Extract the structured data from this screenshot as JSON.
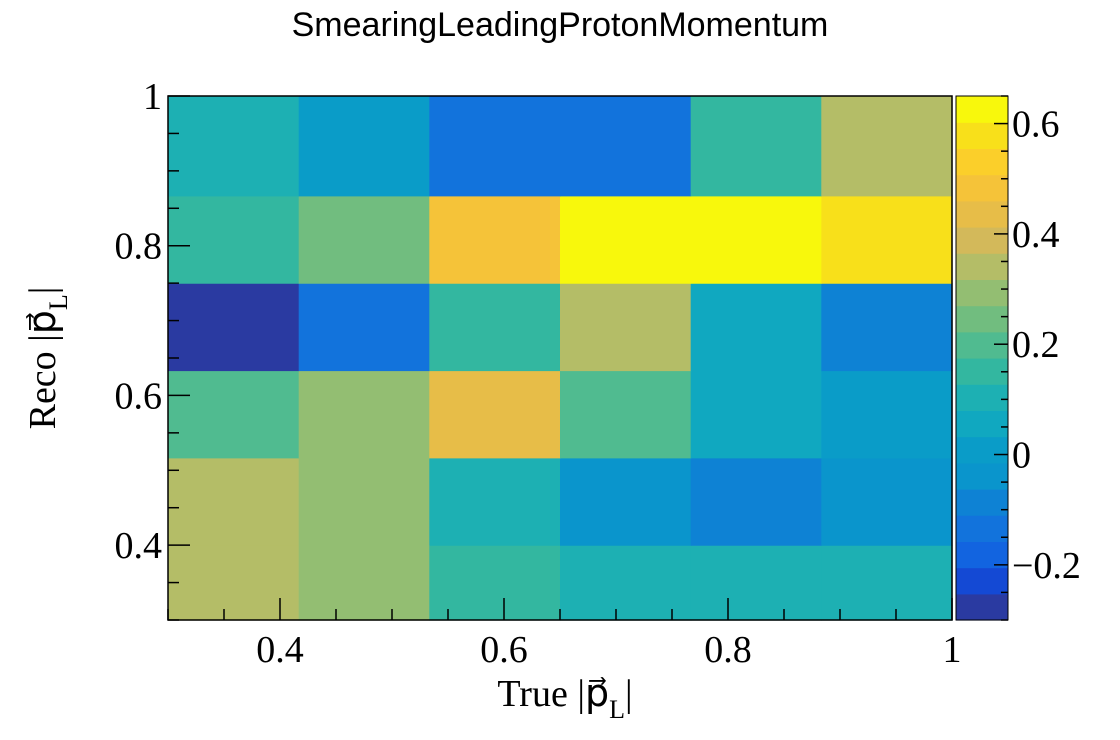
{
  "chart_data": {
    "type": "heatmap",
    "title": "SmearingLeadingProtonMomentum",
    "xlabel": "True |p⃗_L|",
    "ylabel": "Reco |p⃗_L|",
    "x_edges": [
      0.3,
      0.4167,
      0.5333,
      0.65,
      0.7667,
      0.8833,
      1.0
    ],
    "y_edges": [
      0.3,
      0.4,
      0.5167,
      0.6333,
      0.75,
      0.8667,
      1.0
    ],
    "xlim": [
      0.3,
      1.0
    ],
    "ylim": [
      0.3,
      1.0
    ],
    "zlim": [
      -0.3,
      0.65
    ],
    "x_ticks": [
      {
        "value": 0.4,
        "label": "0.4"
      },
      {
        "value": 0.6,
        "label": "0.6"
      },
      {
        "value": 0.8,
        "label": "0.8"
      },
      {
        "value": 1.0,
        "label": "1"
      }
    ],
    "y_ticks": [
      {
        "value": 0.4,
        "label": "0.4"
      },
      {
        "value": 0.6,
        "label": "0.6"
      },
      {
        "value": 0.8,
        "label": "0.8"
      },
      {
        "value": 1.0,
        "label": "1"
      }
    ],
    "z_ticks": [
      {
        "value": 0.6,
        "label": "0.6"
      },
      {
        "value": 0.4,
        "label": "0.4"
      },
      {
        "value": 0.2,
        "label": "0.2"
      },
      {
        "value": 0.0,
        "label": "0"
      },
      {
        "value": -0.2,
        "label": "−0.2"
      }
    ],
    "values": [
      [
        0.35,
        0.3,
        0.15,
        0.08,
        0.12,
        0.12
      ],
      [
        0.35,
        0.3,
        0.1,
        -0.02,
        -0.08,
        -0.05
      ],
      [
        0.2,
        0.3,
        0.45,
        0.2,
        0.05,
        0.02
      ],
      [
        -0.28,
        -0.12,
        0.15,
        0.35,
        0.05,
        -0.1
      ],
      [
        0.15,
        0.25,
        0.5,
        0.65,
        0.65,
        0.6
      ],
      [
        0.12,
        0.03,
        -0.15,
        -0.15,
        0.15,
        0.35
      ]
    ],
    "palette": [
      "#2a3aa1",
      "#1449d4",
      "#1264e0",
      "#1273dc",
      "#0e82d4",
      "#0a95cc",
      "#0a9cc8",
      "#10a8c0",
      "#1db0b3",
      "#33b7a0",
      "#50bb90",
      "#71bd7f",
      "#93be72",
      "#b4bd67",
      "#d3b95a",
      "#e7bd48",
      "#f5c339",
      "#fbcf2a",
      "#f8e01a",
      "#f8f80c"
    ]
  }
}
